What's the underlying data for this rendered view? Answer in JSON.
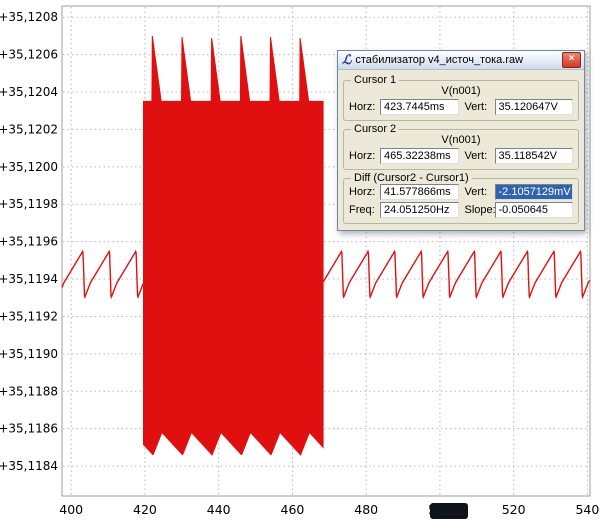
{
  "dialog": {
    "logo_glyph": "ℒ",
    "title": "стабилизатор v4_источ_тока.raw",
    "close_label": "×",
    "cursor1": {
      "label": "Cursor 1",
      "signal": "V(n001)",
      "horz_label": "Horz:",
      "horz": "423.7445ms",
      "vert_label": "Vert:",
      "vert": "35.120647V"
    },
    "cursor2": {
      "label": "Cursor 2",
      "signal": "V(n001)",
      "horz_label": "Horz:",
      "horz": "465.32238ms",
      "vert_label": "Vert:",
      "vert": "35.118542V"
    },
    "diff": {
      "label": "Diff (Cursor2 - Cursor1)",
      "horz_label": "Horz:",
      "horz": "41.577866ms",
      "vert_label": "Vert:",
      "vert": "-2.1057129mV",
      "freq_label": "Freq:",
      "freq": "24.051250Hz",
      "slope_label": "Slope:",
      "slope": "-0.050645"
    }
  },
  "chart_data": {
    "type": "line",
    "title": "",
    "xlabel": "",
    "ylabel": "",
    "x_unit": "ms",
    "grid": "dotted",
    "legend": "none",
    "series_name": "V(n001)",
    "series_color": "#e01010",
    "x_ticks": [
      400,
      420,
      440,
      460,
      480,
      500,
      520,
      540
    ],
    "y_ticks": [
      35.1208,
      35.1206,
      35.1204,
      35.1202,
      35.12,
      35.1198,
      35.1196,
      35.1194,
      35.1192,
      35.119,
      35.1188,
      35.1186,
      35.1184
    ],
    "y_tick_labels": [
      "+35,1208",
      "+35,1206",
      "+35,1204",
      "+35,1202",
      "+35,1200",
      "+35,1198",
      "+35,1196",
      "+35,1194",
      "+35,1192",
      "+35,1190",
      "+35,1188",
      "+35,1186",
      "+35,1184"
    ],
    "xlim": [
      397.5,
      540.7
    ],
    "ylim": [
      35.11824,
      35.12086
    ],
    "waveform": {
      "description": "Small sawtooth ripple around 35.1195 V with a high-frequency oscillation burst between ~420 ms and ~468 ms spanning ~35.1185 V to ~35.1207 V (≈2.1 mV p-p).",
      "quiet": {
        "period_ms": 7.2,
        "base_v": 35.11938,
        "peak_v": 35.11955,
        "notch_v": 35.1193,
        "segments": [
          {
            "from_ms": 397.5,
            "to_ms": 419.6,
            "phase_ms": 398.0
          },
          {
            "from_ms": 468.4,
            "to_ms": 540.7,
            "phase_ms": 468.2
          }
        ]
      },
      "burst": {
        "from_ms": 419.6,
        "to_ms": 468.4,
        "period_ms": 8.0,
        "top_base_v": 35.12035,
        "top_peak_v": 35.1207,
        "top_phase_ms": 2.4,
        "bottom_base_v": 35.11858,
        "bottom_dip_v": 35.11846,
        "bottom_phase_ms": 5.0
      }
    }
  }
}
